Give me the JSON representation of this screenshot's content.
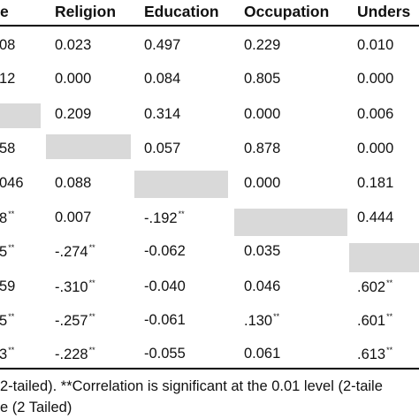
{
  "headers": {
    "col0_fragment": "e",
    "religion": "Religion",
    "education": "Education",
    "occupation": "Occupation",
    "understanding_fragment": "Unders"
  },
  "rows": [
    {
      "c0": "08",
      "c0_sig": "",
      "religion": "0.023",
      "religion_sig": "",
      "education": "0.497",
      "education_sig": "",
      "occupation": "0.229",
      "occupation_sig": "",
      "understanding": "0.010",
      "understanding_sig": ""
    },
    {
      "c0": "12",
      "c0_sig": "",
      "religion": "0.000",
      "religion_sig": "",
      "education": "0.084",
      "education_sig": "",
      "occupation": "0.805",
      "occupation_sig": "",
      "understanding": "0.000",
      "understanding_sig": ""
    },
    {
      "c0": "",
      "c0_sig": "",
      "religion": "0.209",
      "religion_sig": "",
      "education": "0.314",
      "education_sig": "",
      "occupation": "0.000",
      "occupation_sig": "",
      "understanding": "0.006",
      "understanding_sig": ""
    },
    {
      "c0": "58",
      "c0_sig": "",
      "religion": "",
      "religion_sig": "",
      "education": "0.057",
      "education_sig": "",
      "occupation": "0.878",
      "occupation_sig": "",
      "understanding": "0.000",
      "understanding_sig": ""
    },
    {
      "c0": "046",
      "c0_sig": "",
      "religion": "0.088",
      "religion_sig": "",
      "education": "",
      "education_sig": "",
      "occupation": "0.000",
      "occupation_sig": "",
      "understanding": "0.181",
      "understanding_sig": ""
    },
    {
      "c0": "8",
      "c0_sig": "**",
      "religion": "0.007",
      "religion_sig": "",
      "education": "-.192",
      "education_sig": "**",
      "occupation": "",
      "occupation_sig": "",
      "understanding": "0.444",
      "understanding_sig": ""
    },
    {
      "c0": "5",
      "c0_sig": "**",
      "religion": "-.274",
      "religion_sig": "**",
      "education": "-0.062",
      "education_sig": "",
      "occupation": "0.035",
      "occupation_sig": "",
      "understanding": "",
      "understanding_sig": ""
    },
    {
      "c0": "59",
      "c0_sig": "",
      "religion": "-.310",
      "religion_sig": "**",
      "education": "-0.040",
      "education_sig": "",
      "occupation": "0.046",
      "occupation_sig": "",
      "understanding": ".602",
      "understanding_sig": "**"
    },
    {
      "c0": "5",
      "c0_sig": "**",
      "religion": "-.257",
      "religion_sig": "**",
      "education": "-0.061",
      "education_sig": "",
      "occupation": ".130",
      "occupation_sig": "**",
      "understanding": ".601",
      "understanding_sig": "**"
    },
    {
      "c0": "3",
      "c0_sig": "**",
      "religion": "-.228",
      "religion_sig": "**",
      "education": "-0.055",
      "education_sig": "",
      "occupation": "0.061",
      "occupation_sig": "",
      "understanding": ".613",
      "understanding_sig": "**"
    }
  ],
  "footnotes": {
    "line1": "2-tailed). **Correlation is significant at the 0.01 level (2-taile",
    "line2": "e (2 Tailed)"
  }
}
